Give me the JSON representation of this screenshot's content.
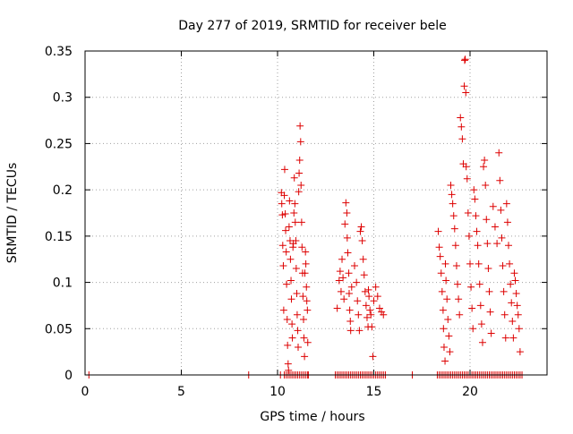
{
  "colors": {
    "series": "#dd0000",
    "axis": "#000000",
    "grid": "#a0a0a0",
    "background": "#ffffff"
  },
  "chart_data": {
    "type": "scatter",
    "title": "Day 277 of 2019, SRMTID for receiver bele",
    "xlabel": "GPS time / hours",
    "ylabel": "SRMTID / TECUs",
    "xlim": [
      0,
      24
    ],
    "ylim": [
      0,
      0.35
    ],
    "grid": true,
    "marker": "+",
    "x_ticks": [
      0,
      5,
      10,
      15,
      20
    ],
    "y_ticks": [
      0,
      0.05,
      0.1,
      0.15,
      0.2,
      0.25,
      0.3,
      0.35
    ],
    "x_tick_labels": [
      "0",
      "5",
      "10",
      "15",
      "20"
    ],
    "y_tick_labels": [
      "0",
      "0.05",
      "0.1",
      "0.15",
      "0.2",
      "0.25",
      "0.3",
      "0.35"
    ],
    "series": [
      {
        "name": "SRMTID",
        "points": [
          [
            0.2,
            0.0
          ],
          [
            8.5,
            0.0
          ],
          [
            10.15,
            0.0
          ],
          [
            10.2,
            0.197
          ],
          [
            10.22,
            0.185
          ],
          [
            10.25,
            0.173
          ],
          [
            10.27,
            0.14
          ],
          [
            10.3,
            0.118
          ],
          [
            10.32,
            0.07
          ],
          [
            10.35,
            0.194
          ],
          [
            10.37,
            0.222
          ],
          [
            10.4,
            0.174
          ],
          [
            10.42,
            0.156
          ],
          [
            10.45,
            0.133
          ],
          [
            10.47,
            0.098
          ],
          [
            10.5,
            0.06
          ],
          [
            10.52,
            0.032
          ],
          [
            10.55,
            0.012
          ],
          [
            10.57,
            0.005
          ],
          [
            10.6,
            0.16
          ],
          [
            10.62,
            0.188
          ],
          [
            10.65,
            0.145
          ],
          [
            10.67,
            0.125
          ],
          [
            10.7,
            0.102
          ],
          [
            10.72,
            0.082
          ],
          [
            10.75,
            0.055
          ],
          [
            10.77,
            0.04
          ],
          [
            10.8,
            0.138
          ],
          [
            10.82,
            0.142
          ],
          [
            10.85,
            0.175
          ],
          [
            10.87,
            0.213
          ],
          [
            10.9,
            0.185
          ],
          [
            10.92,
            0.165
          ],
          [
            10.95,
            0.145
          ],
          [
            10.97,
            0.115
          ],
          [
            11.0,
            0.088
          ],
          [
            11.02,
            0.065
          ],
          [
            11.05,
            0.048
          ],
          [
            11.07,
            0.03
          ],
          [
            11.1,
            0.198
          ],
          [
            11.12,
            0.218
          ],
          [
            11.15,
            0.232
          ],
          [
            11.17,
            0.269
          ],
          [
            11.2,
            0.252
          ],
          [
            11.22,
            0.205
          ],
          [
            11.25,
            0.165
          ],
          [
            11.27,
            0.138
          ],
          [
            11.3,
            0.11
          ],
          [
            11.32,
            0.085
          ],
          [
            11.35,
            0.06
          ],
          [
            11.37,
            0.04
          ],
          [
            11.4,
            0.02
          ],
          [
            11.42,
            0.11
          ],
          [
            11.45,
            0.133
          ],
          [
            11.47,
            0.12
          ],
          [
            11.5,
            0.095
          ],
          [
            11.52,
            0.08
          ],
          [
            11.55,
            0.07
          ],
          [
            11.57,
            0.035
          ],
          [
            11.6,
            0.0
          ],
          [
            10.35,
            0.0
          ],
          [
            10.45,
            0.0
          ],
          [
            10.55,
            0.0
          ],
          [
            10.65,
            0.0
          ],
          [
            10.75,
            0.0
          ],
          [
            10.85,
            0.0
          ],
          [
            10.95,
            0.0
          ],
          [
            11.05,
            0.0
          ],
          [
            11.15,
            0.0
          ],
          [
            11.25,
            0.0
          ],
          [
            11.35,
            0.0
          ],
          [
            11.45,
            0.0
          ],
          [
            11.55,
            0.0
          ],
          [
            13.0,
            0.0
          ],
          [
            13.1,
            0.0
          ],
          [
            13.2,
            0.0
          ],
          [
            13.3,
            0.0
          ],
          [
            13.4,
            0.0
          ],
          [
            13.5,
            0.0
          ],
          [
            13.6,
            0.0
          ],
          [
            13.7,
            0.0
          ],
          [
            13.8,
            0.0
          ],
          [
            13.9,
            0.0
          ],
          [
            14.0,
            0.0
          ],
          [
            14.1,
            0.0
          ],
          [
            14.2,
            0.0
          ],
          [
            14.3,
            0.0
          ],
          [
            14.4,
            0.0
          ],
          [
            14.5,
            0.0
          ],
          [
            14.6,
            0.0
          ],
          [
            14.7,
            0.0
          ],
          [
            14.8,
            0.0
          ],
          [
            14.9,
            0.0
          ],
          [
            15.0,
            0.0
          ],
          [
            15.1,
            0.0
          ],
          [
            15.2,
            0.0
          ],
          [
            15.3,
            0.0
          ],
          [
            15.4,
            0.0
          ],
          [
            15.5,
            0.0
          ],
          [
            15.6,
            0.0
          ],
          [
            13.1,
            0.072
          ],
          [
            13.2,
            0.102
          ],
          [
            13.25,
            0.112
          ],
          [
            13.3,
            0.09
          ],
          [
            13.35,
            0.125
          ],
          [
            13.4,
            0.105
          ],
          [
            13.45,
            0.082
          ],
          [
            13.5,
            0.163
          ],
          [
            13.55,
            0.186
          ],
          [
            13.6,
            0.175
          ],
          [
            13.62,
            0.148
          ],
          [
            13.65,
            0.132
          ],
          [
            13.7,
            0.11
          ],
          [
            13.72,
            0.088
          ],
          [
            13.75,
            0.07
          ],
          [
            13.78,
            0.058
          ],
          [
            13.8,
            0.048
          ],
          [
            13.85,
            0.095
          ],
          [
            14.0,
            0.118
          ],
          [
            14.1,
            0.1
          ],
          [
            14.15,
            0.08
          ],
          [
            14.2,
            0.065
          ],
          [
            14.25,
            0.048
          ],
          [
            14.3,
            0.155
          ],
          [
            14.35,
            0.16
          ],
          [
            14.4,
            0.145
          ],
          [
            14.45,
            0.125
          ],
          [
            14.5,
            0.108
          ],
          [
            14.55,
            0.09
          ],
          [
            14.6,
            0.075
          ],
          [
            14.65,
            0.062
          ],
          [
            14.7,
            0.052
          ],
          [
            14.72,
            0.092
          ],
          [
            14.75,
            0.085
          ],
          [
            14.8,
            0.07
          ],
          [
            14.85,
            0.065
          ],
          [
            14.9,
            0.052
          ],
          [
            14.95,
            0.02
          ],
          [
            15.0,
            0.08
          ],
          [
            15.1,
            0.095
          ],
          [
            15.2,
            0.085
          ],
          [
            15.3,
            0.072
          ],
          [
            15.4,
            0.068
          ],
          [
            15.5,
            0.065
          ],
          [
            17.0,
            0.0
          ],
          [
            18.3,
            0.0
          ],
          [
            18.4,
            0.0
          ],
          [
            18.5,
            0.0
          ],
          [
            18.6,
            0.0
          ],
          [
            18.7,
            0.0
          ],
          [
            18.8,
            0.0
          ],
          [
            18.9,
            0.0
          ],
          [
            19.0,
            0.0
          ],
          [
            19.1,
            0.0
          ],
          [
            19.2,
            0.0
          ],
          [
            19.3,
            0.0
          ],
          [
            19.4,
            0.0
          ],
          [
            19.5,
            0.0
          ],
          [
            19.6,
            0.0
          ],
          [
            19.7,
            0.0
          ],
          [
            19.8,
            0.0
          ],
          [
            19.9,
            0.0
          ],
          [
            20.0,
            0.0
          ],
          [
            20.1,
            0.0
          ],
          [
            20.2,
            0.0
          ],
          [
            20.3,
            0.0
          ],
          [
            20.4,
            0.0
          ],
          [
            20.5,
            0.0
          ],
          [
            20.6,
            0.0
          ],
          [
            20.7,
            0.0
          ],
          [
            20.8,
            0.0
          ],
          [
            20.9,
            0.0
          ],
          [
            21.0,
            0.0
          ],
          [
            21.1,
            0.0
          ],
          [
            21.2,
            0.0
          ],
          [
            21.3,
            0.0
          ],
          [
            21.4,
            0.0
          ],
          [
            21.5,
            0.0
          ],
          [
            21.6,
            0.0
          ],
          [
            21.7,
            0.0
          ],
          [
            21.8,
            0.0
          ],
          [
            21.9,
            0.0
          ],
          [
            22.0,
            0.0
          ],
          [
            22.1,
            0.0
          ],
          [
            22.2,
            0.0
          ],
          [
            22.3,
            0.0
          ],
          [
            22.4,
            0.0
          ],
          [
            22.5,
            0.0
          ],
          [
            22.6,
            0.0
          ],
          [
            22.7,
            0.0
          ],
          [
            18.35,
            0.155
          ],
          [
            18.4,
            0.138
          ],
          [
            18.45,
            0.128
          ],
          [
            18.5,
            0.11
          ],
          [
            18.55,
            0.09
          ],
          [
            18.6,
            0.07
          ],
          [
            18.62,
            0.05
          ],
          [
            18.65,
            0.03
          ],
          [
            18.7,
            0.015
          ],
          [
            18.72,
            0.12
          ],
          [
            18.75,
            0.102
          ],
          [
            18.8,
            0.082
          ],
          [
            18.85,
            0.06
          ],
          [
            18.9,
            0.042
          ],
          [
            18.95,
            0.025
          ],
          [
            19.0,
            0.205
          ],
          [
            19.05,
            0.195
          ],
          [
            19.1,
            0.185
          ],
          [
            19.15,
            0.172
          ],
          [
            19.2,
            0.158
          ],
          [
            19.25,
            0.14
          ],
          [
            19.3,
            0.118
          ],
          [
            19.35,
            0.098
          ],
          [
            19.4,
            0.082
          ],
          [
            19.45,
            0.065
          ],
          [
            19.5,
            0.278
          ],
          [
            19.55,
            0.268
          ],
          [
            19.6,
            0.255
          ],
          [
            19.65,
            0.228
          ],
          [
            19.7,
            0.312
          ],
          [
            19.72,
            0.34
          ],
          [
            19.75,
            0.341
          ],
          [
            19.78,
            0.305
          ],
          [
            19.8,
            0.225
          ],
          [
            19.85,
            0.212
          ],
          [
            19.9,
            0.175
          ],
          [
            19.95,
            0.15
          ],
          [
            20.0,
            0.12
          ],
          [
            20.05,
            0.095
          ],
          [
            20.1,
            0.072
          ],
          [
            20.15,
            0.05
          ],
          [
            20.2,
            0.2
          ],
          [
            20.25,
            0.19
          ],
          [
            20.3,
            0.172
          ],
          [
            20.35,
            0.155
          ],
          [
            20.4,
            0.14
          ],
          [
            20.45,
            0.12
          ],
          [
            20.5,
            0.098
          ],
          [
            20.55,
            0.075
          ],
          [
            20.6,
            0.055
          ],
          [
            20.65,
            0.035
          ],
          [
            20.7,
            0.225
          ],
          [
            20.75,
            0.232
          ],
          [
            20.8,
            0.205
          ],
          [
            20.85,
            0.168
          ],
          [
            20.9,
            0.142
          ],
          [
            20.95,
            0.115
          ],
          [
            21.0,
            0.09
          ],
          [
            21.05,
            0.068
          ],
          [
            21.1,
            0.045
          ],
          [
            21.2,
            0.182
          ],
          [
            21.3,
            0.16
          ],
          [
            21.4,
            0.142
          ],
          [
            21.5,
            0.24
          ],
          [
            21.55,
            0.21
          ],
          [
            21.6,
            0.178
          ],
          [
            21.65,
            0.148
          ],
          [
            21.7,
            0.118
          ],
          [
            21.75,
            0.09
          ],
          [
            21.8,
            0.065
          ],
          [
            21.85,
            0.04
          ],
          [
            21.9,
            0.185
          ],
          [
            21.95,
            0.165
          ],
          [
            22.0,
            0.14
          ],
          [
            22.05,
            0.12
          ],
          [
            22.1,
            0.098
          ],
          [
            22.15,
            0.078
          ],
          [
            22.2,
            0.058
          ],
          [
            22.25,
            0.04
          ],
          [
            22.3,
            0.11
          ],
          [
            22.35,
            0.102
          ],
          [
            22.4,
            0.088
          ],
          [
            22.45,
            0.075
          ],
          [
            22.5,
            0.065
          ],
          [
            22.55,
            0.05
          ],
          [
            22.6,
            0.025
          ]
        ]
      }
    ]
  }
}
